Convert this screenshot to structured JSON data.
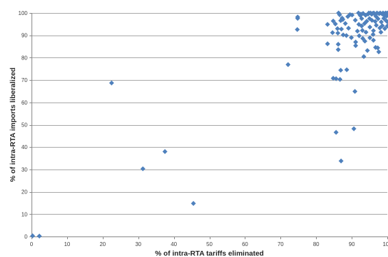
{
  "chart_data": {
    "type": "scatter",
    "title": "",
    "xlabel": "% of intra-RTA tariffs eliminated",
    "ylabel": "% of intra-RTA imports liberalized",
    "xlim": [
      0,
      100
    ],
    "ylim": [
      0,
      100
    ],
    "xticks": [
      "0",
      "10",
      "20",
      "30",
      "40",
      "50",
      "60",
      "70",
      "80",
      "90",
      "100"
    ],
    "yticks": [
      "0",
      "10",
      "20",
      "30",
      "40",
      "50",
      "60",
      "70",
      "80",
      "90",
      "100"
    ],
    "grid": "horizontal",
    "legend": "none",
    "marker": "diamond",
    "colors": {
      "marker": "#4f81bd",
      "grid": "#a6a6a6",
      "axis": "#868686"
    },
    "series": [
      {
        "points": [
          [
            0.3,
            0.3
          ],
          [
            2.2,
            0.2
          ],
          [
            22.5,
            68.7
          ],
          [
            31.3,
            30.3
          ],
          [
            37.5,
            38.0
          ],
          [
            45.5,
            14.8
          ],
          [
            72.1,
            76.9
          ],
          [
            74.8,
            98.2
          ],
          [
            74.8,
            97.6
          ],
          [
            74.7,
            92.6
          ],
          [
            83.2,
            94.9
          ],
          [
            83.2,
            86.2
          ],
          [
            84.6,
            91.2
          ],
          [
            84.8,
            96.4
          ],
          [
            84.8,
            70.8
          ],
          [
            85.4,
            95.1
          ],
          [
            85.6,
            70.6
          ],
          [
            85.6,
            46.6
          ],
          [
            86.0,
            93.0
          ],
          [
            86.1,
            91.0
          ],
          [
            86.2,
            86.0
          ],
          [
            86.2,
            83.6
          ],
          [
            86.3,
            100.0
          ],
          [
            86.6,
            99.2
          ],
          [
            86.7,
            70.3
          ],
          [
            86.9,
            96.6
          ],
          [
            86.9,
            74.4
          ],
          [
            87.0,
            33.8
          ],
          [
            87.1,
            92.8
          ],
          [
            87.3,
            97.7
          ],
          [
            87.5,
            97.1
          ],
          [
            87.6,
            90.2
          ],
          [
            88.2,
            95.3
          ],
          [
            88.5,
            89.9
          ],
          [
            88.6,
            74.6
          ],
          [
            88.9,
            98.4
          ],
          [
            89.1,
            93.2
          ],
          [
            89.5,
            99.3
          ],
          [
            89.9,
            89.0
          ],
          [
            90.1,
            99.1
          ],
          [
            90.6,
            48.2
          ],
          [
            90.9,
            64.9
          ],
          [
            91.0,
            96.8
          ],
          [
            91.1,
            87.0
          ],
          [
            91.1,
            85.4
          ],
          [
            91.6,
            91.9
          ],
          [
            91.9,
            100.0
          ],
          [
            92.0,
            94.9
          ],
          [
            92.1,
            89.8
          ],
          [
            92.4,
            98.9
          ],
          [
            92.6,
            99.5
          ],
          [
            92.8,
            94.2
          ],
          [
            92.8,
            97.5
          ],
          [
            93.0,
            92.2
          ],
          [
            93.1,
            88.6
          ],
          [
            93.2,
            99.8
          ],
          [
            93.4,
            80.5
          ],
          [
            93.6,
            95.3
          ],
          [
            93.7,
            87.4
          ],
          [
            93.9,
            99.0
          ],
          [
            94.0,
            91.4
          ],
          [
            94.2,
            96.3
          ],
          [
            94.4,
            83.2
          ],
          [
            94.6,
            99.5
          ],
          [
            94.8,
            100.0
          ],
          [
            95.0,
            97.5
          ],
          [
            95.1,
            93.7
          ],
          [
            95.1,
            88.9
          ],
          [
            95.3,
            100.0
          ],
          [
            95.6,
            99.4
          ],
          [
            95.7,
            96.7
          ],
          [
            95.9,
            99.8
          ],
          [
            96.0,
            90.4
          ],
          [
            96.1,
            92.1
          ],
          [
            96.1,
            87.8
          ],
          [
            96.2,
            100.0
          ],
          [
            96.5,
            99.5
          ],
          [
            96.6,
            96.2
          ],
          [
            96.7,
            84.6
          ],
          [
            96.8,
            98.5
          ],
          [
            96.9,
            94.5
          ],
          [
            97.1,
            100.0
          ],
          [
            97.3,
            84.4
          ],
          [
            97.4,
            97.4
          ],
          [
            97.6,
            82.6
          ],
          [
            97.7,
            99.7
          ],
          [
            97.9,
            93.3
          ],
          [
            98.0,
            100.0
          ],
          [
            98.2,
            91.4
          ],
          [
            98.3,
            96.0
          ],
          [
            98.5,
            99.6
          ],
          [
            98.6,
            94.3
          ],
          [
            98.8,
            100.0
          ],
          [
            99.0,
            97.6
          ],
          [
            99.2,
            98.8
          ],
          [
            99.3,
            93.0
          ],
          [
            99.5,
            100.0
          ],
          [
            99.7,
            96.5
          ],
          [
            99.8,
            98.6
          ],
          [
            100.0,
            100.0
          ],
          [
            100.0,
            99.0
          ],
          [
            100.0,
            96.1
          ],
          [
            100.0,
            94.2
          ]
        ]
      }
    ]
  }
}
